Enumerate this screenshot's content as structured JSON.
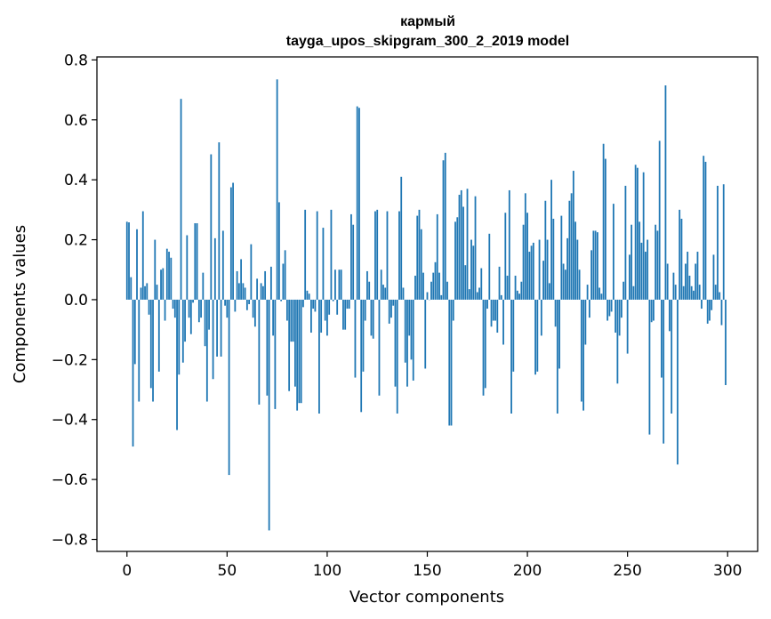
{
  "chart_data": {
    "type": "bar",
    "title": "кармый",
    "subtitle": "tayga_upos_skipgram_300_2_2019 model",
    "xlabel": "Vector components",
    "ylabel": "Components values",
    "xlim": [
      -15,
      315
    ],
    "ylim": [
      -0.84,
      0.81
    ],
    "xticks": [
      0,
      50,
      100,
      150,
      200,
      250,
      300
    ],
    "xtick_labels": [
      "0",
      "50",
      "100",
      "150",
      "200",
      "250",
      "300"
    ],
    "yticks": [
      -0.8,
      -0.6,
      -0.4,
      -0.2,
      0.0,
      0.2,
      0.4,
      0.6,
      0.8
    ],
    "ytick_labels": [
      "−0.8",
      "−0.6",
      "−0.4",
      "−0.2",
      "0.0",
      "0.2",
      "0.4",
      "0.6",
      "0.8"
    ],
    "grid": false,
    "bar_color": "#1f77b4",
    "x": [
      0,
      1,
      2,
      3,
      4,
      5,
      6,
      7,
      8,
      9,
      10,
      11,
      12,
      13,
      14,
      15,
      16,
      17,
      18,
      19,
      20,
      21,
      22,
      23,
      24,
      25,
      26,
      27,
      28,
      29,
      30,
      31,
      32,
      33,
      34,
      35,
      36,
      37,
      38,
      39,
      40,
      41,
      42,
      43,
      44,
      45,
      46,
      47,
      48,
      49,
      50,
      51,
      52,
      53,
      54,
      55,
      56,
      57,
      58,
      59,
      60,
      61,
      62,
      63,
      64,
      65,
      66,
      67,
      68,
      69,
      70,
      71,
      72,
      73,
      74,
      75,
      76,
      77,
      78,
      79,
      80,
      81,
      82,
      83,
      84,
      85,
      86,
      87,
      88,
      89,
      90,
      91,
      92,
      93,
      94,
      95,
      96,
      97,
      98,
      99,
      100,
      101,
      102,
      103,
      104,
      105,
      106,
      107,
      108,
      109,
      110,
      111,
      112,
      113,
      114,
      115,
      116,
      117,
      118,
      119,
      120,
      121,
      122,
      123,
      124,
      125,
      126,
      127,
      128,
      129,
      130,
      131,
      132,
      133,
      134,
      135,
      136,
      137,
      138,
      139,
      140,
      141,
      142,
      143,
      144,
      145,
      146,
      147,
      148,
      149,
      150,
      151,
      152,
      153,
      154,
      155,
      156,
      157,
      158,
      159,
      160,
      161,
      162,
      163,
      164,
      165,
      166,
      167,
      168,
      169,
      170,
      171,
      172,
      173,
      174,
      175,
      176,
      177,
      178,
      179,
      180,
      181,
      182,
      183,
      184,
      185,
      186,
      187,
      188,
      189,
      190,
      191,
      192,
      193,
      194,
      195,
      196,
      197,
      198,
      199,
      200,
      201,
      202,
      203,
      204,
      205,
      206,
      207,
      208,
      209,
      210,
      211,
      212,
      213,
      214,
      215,
      216,
      217,
      218,
      219,
      220,
      221,
      222,
      223,
      224,
      225,
      226,
      227,
      228,
      229,
      230,
      231,
      232,
      233,
      234,
      235,
      236,
      237,
      238,
      239,
      240,
      241,
      242,
      243,
      244,
      245,
      246,
      247,
      248,
      249,
      250,
      251,
      252,
      253,
      254,
      255,
      256,
      257,
      258,
      259,
      260,
      261,
      262,
      263,
      264,
      265,
      266,
      267,
      268,
      269,
      270,
      271,
      272,
      273,
      274,
      275,
      276,
      277,
      278,
      279,
      280,
      281,
      282,
      283,
      284,
      285,
      286,
      287,
      288,
      289,
      290,
      291,
      292,
      293,
      294,
      295,
      296,
      297,
      298,
      299
    ],
    "values": [
      0.26,
      0.258,
      0.075,
      -0.49,
      -0.215,
      0.235,
      -0.34,
      0.04,
      0.295,
      0.045,
      0.055,
      -0.05,
      -0.295,
      -0.34,
      0.2,
      0.05,
      -0.24,
      0.1,
      0.105,
      -0.07,
      0.17,
      0.16,
      0.14,
      -0.03,
      -0.06,
      -0.435,
      -0.25,
      0.67,
      -0.21,
      -0.14,
      0.215,
      -0.06,
      -0.115,
      -0.01,
      0.255,
      0.255,
      -0.075,
      -0.06,
      0.09,
      -0.155,
      -0.34,
      -0.1,
      0.485,
      -0.265,
      0.205,
      -0.19,
      0.525,
      -0.19,
      0.23,
      -0.02,
      -0.06,
      -0.585,
      0.375,
      0.39,
      -0.04,
      0.095,
      0.055,
      0.135,
      0.055,
      0.04,
      -0.035,
      -0.015,
      0.185,
      -0.06,
      -0.09,
      0.07,
      -0.35,
      0.055,
      0.045,
      0.095,
      -0.32,
      -0.77,
      0.11,
      -0.12,
      -0.365,
      0.735,
      0.325,
      -0.005,
      0.12,
      0.165,
      -0.07,
      -0.305,
      -0.14,
      -0.14,
      -0.29,
      -0.37,
      -0.345,
      -0.345,
      -0.025,
      0.3,
      0.03,
      0.02,
      -0.11,
      -0.03,
      -0.04,
      0.295,
      -0.38,
      -0.11,
      0.24,
      -0.07,
      -0.12,
      -0.05,
      0.3,
      -0.005,
      0.1,
      -0.05,
      0.1,
      0.1,
      -0.1,
      -0.1,
      -0.03,
      -0.03,
      0.285,
      0.25,
      -0.26,
      0.645,
      0.64,
      -0.375,
      -0.24,
      -0.07,
      0.095,
      0.06,
      -0.12,
      -0.13,
      0.295,
      0.3,
      -0.32,
      0.1,
      0.05,
      0.04,
      0.295,
      -0.08,
      -0.06,
      -0.02,
      -0.29,
      -0.38,
      0.295,
      0.41,
      0.04,
      -0.21,
      -0.29,
      -0.12,
      -0.2,
      -0.27,
      0.08,
      0.28,
      0.3,
      0.235,
      0.09,
      -0.23,
      0.025,
      0.0,
      0.06,
      0.09,
      0.125,
      0.285,
      0.09,
      0.015,
      0.465,
      0.49,
      0.06,
      -0.42,
      -0.42,
      -0.07,
      0.26,
      0.275,
      0.35,
      0.365,
      0.31,
      0.115,
      0.37,
      0.035,
      0.2,
      0.18,
      0.345,
      0.025,
      0.04,
      0.105,
      -0.32,
      -0.295,
      -0.03,
      0.22,
      -0.09,
      -0.07,
      -0.07,
      -0.11,
      0.11,
      0.015,
      -0.15,
      0.29,
      0.08,
      0.365,
      -0.38,
      -0.24,
      0.08,
      0.03,
      0.02,
      0.06,
      0.25,
      0.355,
      0.29,
      0.16,
      0.18,
      0.19,
      -0.25,
      -0.24,
      0.2,
      -0.12,
      0.13,
      0.33,
      0.2,
      0.055,
      0.4,
      0.27,
      -0.09,
      -0.38,
      -0.23,
      0.28,
      0.12,
      0.1,
      0.205,
      0.33,
      0.355,
      0.43,
      0.26,
      0.2,
      0.1,
      -0.34,
      -0.37,
      -0.15,
      0.05,
      -0.06,
      0.165,
      0.23,
      0.23,
      0.225,
      0.04,
      0.02,
      0.52,
      0.47,
      -0.07,
      -0.055,
      -0.04,
      0.32,
      -0.11,
      -0.28,
      -0.12,
      -0.06,
      0.06,
      0.38,
      -0.18,
      0.15,
      0.25,
      0.045,
      0.45,
      0.44,
      0.26,
      0.19,
      0.425,
      0.16,
      0.2,
      -0.45,
      -0.075,
      -0.07,
      0.25,
      0.23,
      0.53,
      -0.26,
      -0.48,
      0.715,
      0.12,
      -0.105,
      -0.38,
      0.09,
      0.05,
      -0.55,
      0.3,
      0.27,
      0.045,
      0.12,
      0.16,
      0.08,
      0.045,
      0.03,
      0.12,
      0.16,
      0.05,
      -0.03,
      0.48,
      0.46,
      -0.08,
      -0.07,
      -0.035,
      0.15,
      0.05,
      0.38,
      0.025,
      -0.085,
      0.385,
      -0.285
    ]
  }
}
